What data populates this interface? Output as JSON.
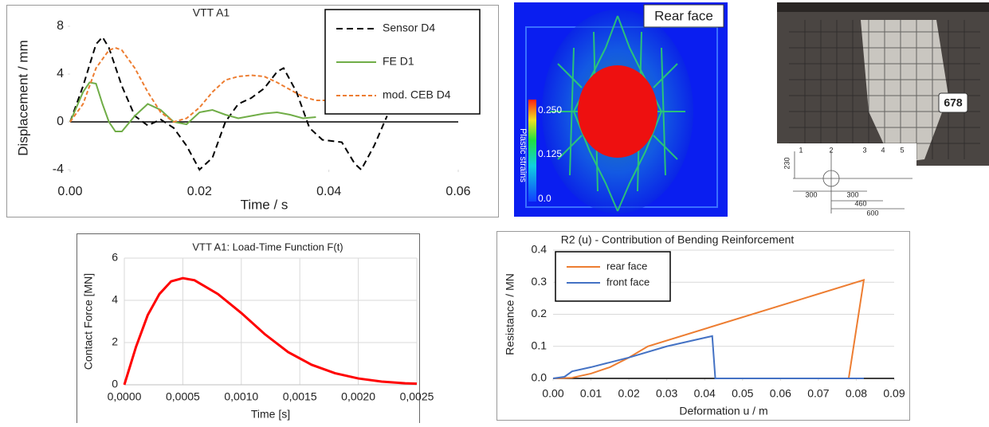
{
  "chart_data": [
    {
      "type": "line",
      "title": "VTT A1",
      "x_label": "Time / s",
      "y_label": "Displacement / mm",
      "xlim": [
        0,
        0.06
      ],
      "xticks": [
        {
          "value": 0,
          "label": "0.00"
        },
        {
          "value": 0.02,
          "label": "0.02"
        },
        {
          "value": 0.04,
          "label": "0.04"
        },
        {
          "value": 0.06,
          "label": "0.06"
        }
      ],
      "ylim": [
        -4,
        8
      ],
      "yticks": [
        -4,
        0,
        4,
        8
      ],
      "grid": "none",
      "legend": "upper right",
      "series": [
        {
          "name": "Sensor D4",
          "color": "#000000",
          "dashed": true,
          "x": [
            0,
            0.002,
            0.004,
            0.005,
            0.006,
            0.008,
            0.01,
            0.012,
            0.014,
            0.016,
            0.018,
            0.02,
            0.022,
            0.024,
            0.026,
            0.028,
            0.03,
            0.032,
            0.033,
            0.035,
            0.037,
            0.039,
            0.042,
            0.044,
            0.045,
            0.047,
            0.049
          ],
          "values": [
            0,
            3,
            6.5,
            7.1,
            6.2,
            3,
            0.5,
            -0.3,
            0.2,
            -0.5,
            -2,
            -4,
            -3,
            0,
            1.5,
            2,
            2.8,
            4.2,
            4.5,
            2.5,
            -0.5,
            -1.5,
            -1.7,
            -3.5,
            -4,
            -2,
            0.5
          ]
        },
        {
          "name": "FE D1",
          "color": "#70ad47",
          "dashed": false,
          "x": [
            0,
            0.002,
            0.003,
            0.004,
            0.005,
            0.006,
            0.007,
            0.008,
            0.01,
            0.012,
            0.014,
            0.016,
            0.018,
            0.02,
            0.022,
            0.024,
            0.026,
            0.028,
            0.03,
            0.032,
            0.034,
            0.036,
            0.038
          ],
          "values": [
            0,
            2.5,
            3.3,
            3.2,
            1.5,
            0,
            -0.8,
            -0.8,
            0.5,
            1.5,
            1,
            0,
            -0.2,
            0.8,
            1,
            0.6,
            0.3,
            0.5,
            0.7,
            0.8,
            0.6,
            0.3,
            0.4
          ]
        },
        {
          "name": "mod. CEB D4",
          "color": "#ed7d31",
          "dashed": true,
          "x": [
            0,
            0.002,
            0.004,
            0.006,
            0.007,
            0.008,
            0.01,
            0.012,
            0.014,
            0.016,
            0.018,
            0.02,
            0.022,
            0.024,
            0.026,
            0.028,
            0.03,
            0.032,
            0.034,
            0.036,
            0.038,
            0.04,
            0.042
          ],
          "values": [
            0,
            1.5,
            4.5,
            6,
            6.2,
            6,
            4.5,
            2.5,
            0.8,
            0,
            0.3,
            1.2,
            2.5,
            3.5,
            3.8,
            3.9,
            3.8,
            3.3,
            2.7,
            2.1,
            1.8,
            1.8,
            2
          ]
        }
      ]
    },
    {
      "type": "line",
      "title": "VTT A1: Load-Time Function F(t)",
      "x_label": "Time [s]",
      "y_label": "Contact Force [MN]",
      "xlim": [
        0,
        0.0025
      ],
      "xticks": [
        {
          "value": 0,
          "label": "0,0000"
        },
        {
          "value": 0.0005,
          "label": "0,0005"
        },
        {
          "value": 0.001,
          "label": "0,0010"
        },
        {
          "value": 0.0015,
          "label": "0,0015"
        },
        {
          "value": 0.002,
          "label": "0,0020"
        },
        {
          "value": 0.0025,
          "label": "0,0025"
        }
      ],
      "ylim": [
        0,
        6
      ],
      "yticks": [
        0,
        2,
        4,
        6
      ],
      "grid": "xy",
      "series": [
        {
          "color": "#ff0000",
          "dashed": false,
          "x": [
            0,
            0.0001,
            0.0002,
            0.0003,
            0.0004,
            0.0005,
            0.0006,
            0.0008,
            0.001,
            0.0012,
            0.0014,
            0.0016,
            0.0018,
            0.002,
            0.0022,
            0.0024,
            0.0025
          ],
          "values": [
            0,
            1.8,
            3.3,
            4.3,
            4.9,
            5.05,
            4.95,
            4.3,
            3.4,
            2.4,
            1.55,
            0.95,
            0.55,
            0.3,
            0.15,
            0.07,
            0.05
          ]
        }
      ]
    },
    {
      "type": "line",
      "title": "R2 (u) - Contribution of Bending Reinforcement",
      "x_label": "Deformation u / m",
      "y_label": "Resistance / MN",
      "xlim": [
        0,
        0.09
      ],
      "xticks": [
        {
          "value": 0,
          "label": "0.00"
        },
        0.01,
        0.02,
        0.03,
        0.04,
        0.05,
        0.06,
        0.07,
        0.08,
        0.09
      ],
      "ylim": [
        0,
        0.4
      ],
      "yticks": [
        {
          "value": 0,
          "label": "0.0"
        },
        0.1,
        0.2,
        0.3,
        0.4
      ],
      "grid": "y",
      "legend": "upper left",
      "series": [
        {
          "name": "rear face",
          "color": "#ed7d31",
          "dashed": false,
          "x": [
            0,
            0.005,
            0.01,
            0.015,
            0.02,
            0.025,
            0.082,
            0.078
          ],
          "values": [
            0,
            0.002,
            0.015,
            0.035,
            0.065,
            0.1,
            0.307,
            0
          ]
        },
        {
          "name": "front face",
          "color": "#4472c4",
          "dashed": false,
          "x": [
            0,
            0.003,
            0.005,
            0.01,
            0.02,
            0.03,
            0.042,
            0.0428,
            0.082
          ],
          "values": [
            0,
            0.005,
            0.022,
            0.035,
            0.065,
            0.1,
            0.132,
            0,
            0
          ]
        }
      ]
    }
  ],
  "figures": {
    "fe_plot": {
      "label": "Rear face",
      "colorbar_title": "Plastic strains",
      "colorbar_ticks": [
        "0.250",
        "0.125",
        "0.0"
      ]
    },
    "photo": {
      "tag": "678",
      "points": [
        "1",
        "2",
        "3",
        "4",
        "5"
      ],
      "dimensions": [
        "230",
        "300",
        "300",
        "460",
        "600"
      ]
    }
  }
}
